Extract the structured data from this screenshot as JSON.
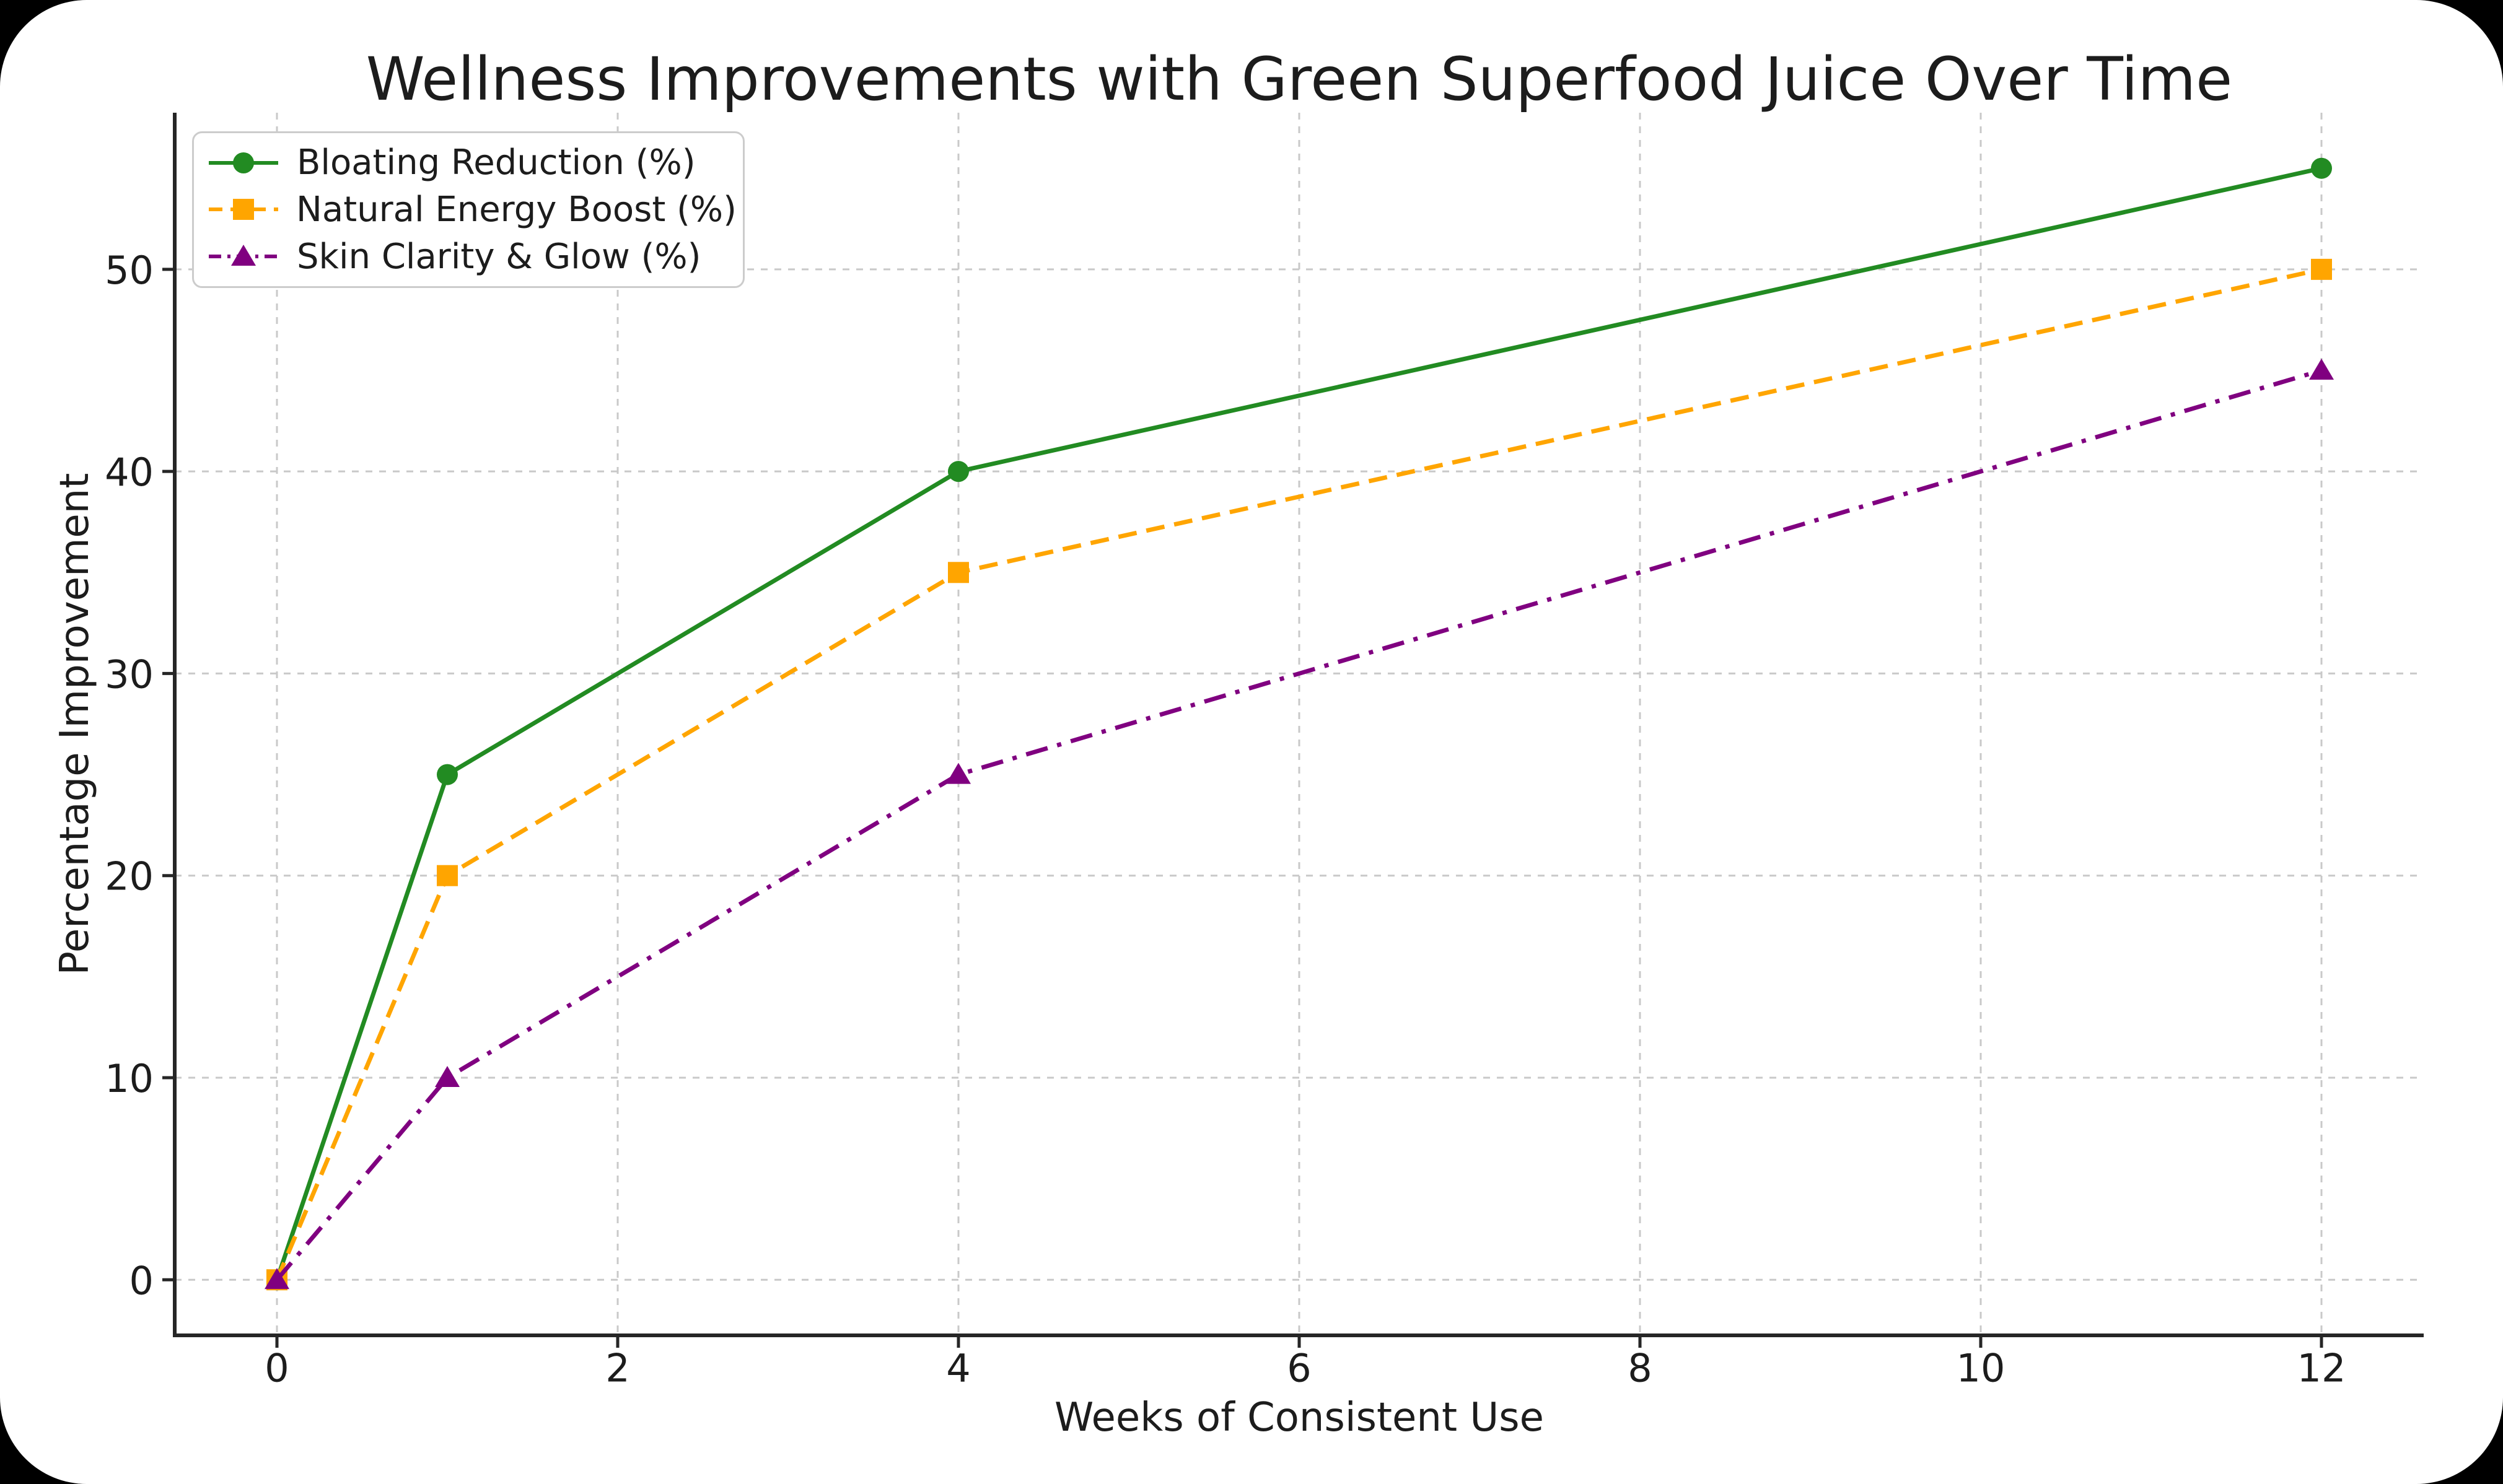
{
  "page": {
    "background_color": "#000000",
    "card_color": "#ffffff"
  },
  "chart_data": {
    "type": "line",
    "title": "Wellness Improvements with Green Superfood Juice Over Time",
    "xlabel": "Weeks of Consistent Use",
    "ylabel": "Percentage Improvement",
    "x": [
      0,
      1,
      4,
      12
    ],
    "series": [
      {
        "name": "Bloating Reduction (%)",
        "values": [
          0,
          25,
          40,
          55
        ],
        "color": "#228B22",
        "line_style": "solid",
        "marker": "circle"
      },
      {
        "name": "Natural Energy Boost (%)",
        "values": [
          0,
          20,
          35,
          50
        ],
        "color": "#FFA500",
        "line_style": "dashed",
        "marker": "square"
      },
      {
        "name": "Skin Clarity & Glow (%)",
        "values": [
          0,
          10,
          25,
          45
        ],
        "color": "#800080",
        "line_style": "dashdot",
        "marker": "triangle"
      }
    ],
    "x_ticks": [
      0,
      2,
      4,
      6,
      8,
      10,
      12
    ],
    "y_ticks": [
      0,
      10,
      20,
      30,
      40,
      50
    ],
    "xlim": [
      -0.6,
      12.6
    ],
    "ylim": [
      -2.75,
      57.75
    ],
    "grid": true,
    "grid_color": "#c9c9c9",
    "spine_color": "#262626",
    "text_color": "#1c1c1c",
    "legend_position": "upper left"
  }
}
